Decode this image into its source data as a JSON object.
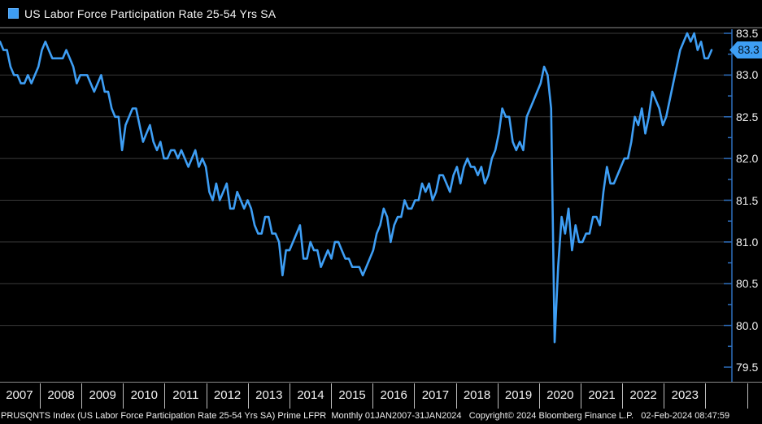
{
  "legend": {
    "label": "US Labor Force Participation Rate 25-54 Yrs SA"
  },
  "chart_data": {
    "type": "line",
    "title": "US Labor Force Participation Rate 25-54 Yrs SA",
    "frequency": "monthly",
    "x_range": "01JAN2007-31JAN2024",
    "ylim": [
      79.5,
      83.5
    ],
    "grid": "horizontal only",
    "legend_position": "top-left",
    "last_value_label": "83.3",
    "y_ticks": [
      "83.5",
      "83.0",
      "82.5",
      "82.0",
      "81.5",
      "81.0",
      "80.5",
      "80.0",
      "79.5"
    ],
    "y_minor_tick_interval": 0.25,
    "x_tick_years": [
      "2007",
      "2008",
      "2009",
      "2010",
      "2011",
      "2012",
      "2013",
      "2014",
      "2015",
      "2016",
      "2017",
      "2018",
      "2019",
      "2020",
      "2021",
      "2022",
      "2023"
    ],
    "series": [
      {
        "name": "US Labor Force Participation Rate 25-54 Yrs SA",
        "start": "2007-01",
        "end": "2024-01",
        "values": [
          83.4,
          83.3,
          83.3,
          83.1,
          83.0,
          83.0,
          82.9,
          82.9,
          83.0,
          82.9,
          83.0,
          83.1,
          83.3,
          83.4,
          83.3,
          83.2,
          83.2,
          83.2,
          83.2,
          83.3,
          83.2,
          83.1,
          82.9,
          83.0,
          83.0,
          83.0,
          82.9,
          82.8,
          82.9,
          83.0,
          82.8,
          82.8,
          82.6,
          82.5,
          82.5,
          82.1,
          82.4,
          82.5,
          82.6,
          82.6,
          82.4,
          82.2,
          82.3,
          82.4,
          82.2,
          82.1,
          82.2,
          82.0,
          82.0,
          82.1,
          82.1,
          82.0,
          82.1,
          82.0,
          81.9,
          82.0,
          82.1,
          81.9,
          82.0,
          81.9,
          81.6,
          81.5,
          81.7,
          81.5,
          81.6,
          81.7,
          81.4,
          81.4,
          81.6,
          81.5,
          81.4,
          81.5,
          81.4,
          81.2,
          81.1,
          81.1,
          81.3,
          81.3,
          81.1,
          81.1,
          81.0,
          80.6,
          80.9,
          80.9,
          81.0,
          81.1,
          81.2,
          80.8,
          80.8,
          81.0,
          80.9,
          80.9,
          80.7,
          80.8,
          80.9,
          80.8,
          81.0,
          81.0,
          80.9,
          80.8,
          80.8,
          80.7,
          80.7,
          80.7,
          80.6,
          80.7,
          80.8,
          80.9,
          81.1,
          81.2,
          81.4,
          81.3,
          81.0,
          81.2,
          81.3,
          81.3,
          81.5,
          81.4,
          81.4,
          81.5,
          81.5,
          81.7,
          81.6,
          81.7,
          81.5,
          81.6,
          81.8,
          81.8,
          81.7,
          81.6,
          81.8,
          81.9,
          81.7,
          81.9,
          82.0,
          81.9,
          81.9,
          81.8,
          81.9,
          81.7,
          81.8,
          82.0,
          82.1,
          82.3,
          82.6,
          82.5,
          82.5,
          82.2,
          82.1,
          82.2,
          82.1,
          82.5,
          82.6,
          82.7,
          82.8,
          82.9,
          83.1,
          83.0,
          82.6,
          79.8,
          80.7,
          81.3,
          81.1,
          81.4,
          80.9,
          81.2,
          81.0,
          81.0,
          81.1,
          81.1,
          81.3,
          81.3,
          81.2,
          81.6,
          81.9,
          81.7,
          81.7,
          81.8,
          81.9,
          82.0,
          82.0,
          82.2,
          82.5,
          82.4,
          82.6,
          82.3,
          82.5,
          82.8,
          82.7,
          82.6,
          82.4,
          82.5,
          82.7,
          82.9,
          83.1,
          83.3,
          83.4,
          83.5,
          83.4,
          83.5,
          83.3,
          83.4,
          83.2,
          83.2,
          83.3
        ]
      }
    ]
  },
  "colors": {
    "background": "#000000",
    "line": "#3e9ef4",
    "axis": "#2e6fbe",
    "grid": "#3a3a3a",
    "tick_label": "#f2f2f2",
    "badge_bg": "#3e9ef4",
    "badge_text": "#00101e"
  },
  "footer": {
    "text": "PRUSQNTS Index (US Labor Force Participation Rate 25-54 Yrs SA) Prime LFPR  Monthly 01JAN2007-31JAN2024   Copyright© 2024 Bloomberg Finance L.P.   02-Feb-2024 08:47:59"
  }
}
